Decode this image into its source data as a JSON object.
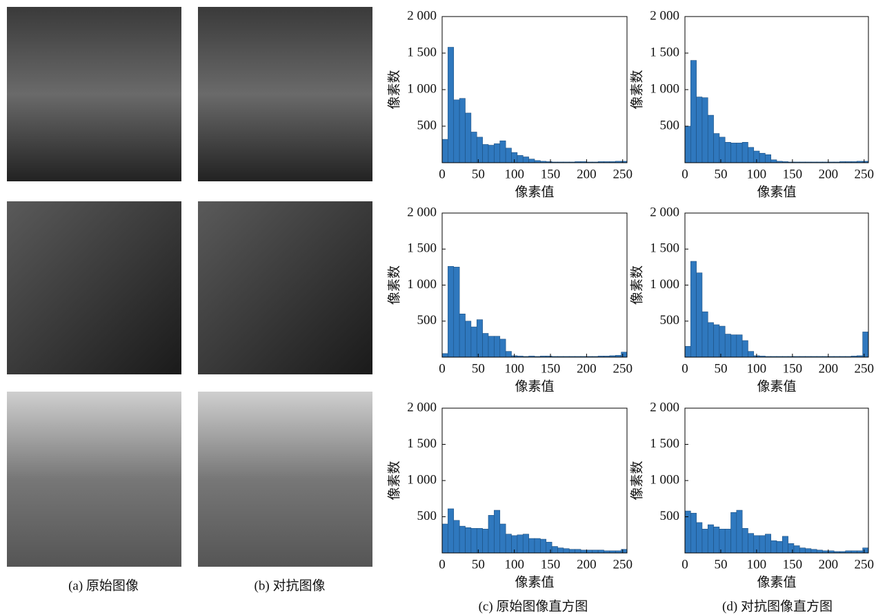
{
  "panel_captions": {
    "a": "(a) 原始图像",
    "b": "(b) 对抗图像",
    "c": "(c) 原始图像直方图",
    "d": "(d) 对抗图像直方图"
  },
  "chart_data": [
    {
      "type": "histogram",
      "xlabel": "像素值",
      "ylabel": "像素数",
      "color": "#2f78be",
      "bins": [
        0,
        8,
        16,
        24,
        32,
        40,
        48,
        56,
        64,
        72,
        80,
        88,
        96,
        104,
        112,
        120,
        128,
        136,
        144,
        152,
        160,
        168,
        176,
        184,
        192,
        200,
        208,
        216,
        224,
        232,
        240,
        248,
        256
      ],
      "counts": [
        320,
        1580,
        860,
        880,
        680,
        420,
        350,
        250,
        240,
        260,
        300,
        200,
        140,
        100,
        80,
        50,
        30,
        20,
        15,
        10,
        10,
        10,
        10,
        15,
        15,
        10,
        10,
        15,
        15,
        15,
        20,
        20
      ],
      "xlim": [
        0,
        256
      ],
      "xticks": [
        0,
        50,
        100,
        150,
        200,
        250
      ],
      "ylim": [
        0,
        2000
      ],
      "yticks": [
        500,
        {
          "value": 1000,
          "label": "1 000"
        },
        {
          "value": 1500,
          "label": "1 500"
        },
        {
          "value": 2000,
          "label": "2 000"
        }
      ]
    },
    {
      "type": "histogram",
      "xlabel": "像素值",
      "ylabel": "像素数",
      "color": "#2f78be",
      "bins": [
        0,
        8,
        16,
        24,
        32,
        40,
        48,
        56,
        64,
        72,
        80,
        88,
        96,
        104,
        112,
        120,
        128,
        136,
        144,
        152,
        160,
        168,
        176,
        184,
        192,
        200,
        208,
        216,
        224,
        232,
        240,
        248,
        256
      ],
      "counts": [
        500,
        1400,
        900,
        890,
        650,
        400,
        350,
        280,
        270,
        270,
        280,
        210,
        160,
        130,
        110,
        40,
        20,
        15,
        10,
        10,
        10,
        10,
        10,
        10,
        10,
        10,
        10,
        15,
        15,
        15,
        20,
        20
      ],
      "xlim": [
        0,
        256
      ],
      "xticks": [
        0,
        50,
        100,
        150,
        200,
        250
      ],
      "ylim": [
        0,
        2000
      ],
      "yticks": [
        500,
        {
          "value": 1000,
          "label": "1 000"
        },
        {
          "value": 1500,
          "label": "1 500"
        },
        {
          "value": 2000,
          "label": "2 000"
        }
      ]
    },
    {
      "type": "histogram",
      "xlabel": "像素值",
      "ylabel": "像素数",
      "color": "#2f78be",
      "bins": [
        0,
        8,
        16,
        24,
        32,
        40,
        48,
        56,
        64,
        72,
        80,
        88,
        96,
        104,
        112,
        120,
        128,
        136,
        144,
        152,
        160,
        168,
        176,
        184,
        192,
        200,
        208,
        216,
        224,
        232,
        240,
        248,
        256
      ],
      "counts": [
        50,
        1260,
        1250,
        600,
        500,
        420,
        520,
        330,
        290,
        290,
        250,
        80,
        20,
        15,
        10,
        15,
        10,
        15,
        15,
        10,
        10,
        10,
        10,
        10,
        10,
        10,
        10,
        15,
        15,
        20,
        25,
        70
      ],
      "xlim": [
        0,
        256
      ],
      "xticks": [
        0,
        50,
        100,
        150,
        200,
        250
      ],
      "ylim": [
        0,
        2000
      ],
      "yticks": [
        500,
        {
          "value": 1000,
          "label": "1 000"
        },
        {
          "value": 1500,
          "label": "1 500"
        },
        {
          "value": 2000,
          "label": "2 000"
        }
      ]
    },
    {
      "type": "histogram",
      "xlabel": "像素值",
      "ylabel": "像素数",
      "color": "#2f78be",
      "bins": [
        0,
        8,
        16,
        24,
        32,
        40,
        48,
        56,
        64,
        72,
        80,
        88,
        96,
        104,
        112,
        120,
        128,
        136,
        144,
        152,
        160,
        168,
        176,
        184,
        192,
        200,
        208,
        216,
        224,
        232,
        240,
        248,
        256
      ],
      "counts": [
        150,
        1330,
        1170,
        630,
        480,
        450,
        430,
        320,
        310,
        310,
        230,
        80,
        20,
        15,
        10,
        10,
        10,
        10,
        10,
        10,
        10,
        10,
        10,
        10,
        10,
        10,
        10,
        10,
        10,
        15,
        20,
        350
      ],
      "xlim": [
        0,
        256
      ],
      "xticks": [
        0,
        50,
        100,
        150,
        200,
        250
      ],
      "ylim": [
        0,
        2000
      ],
      "yticks": [
        500,
        {
          "value": 1000,
          "label": "1 000"
        },
        {
          "value": 1500,
          "label": "1 500"
        },
        {
          "value": 2000,
          "label": "2 000"
        }
      ]
    },
    {
      "type": "histogram",
      "xlabel": "像素值",
      "ylabel": "像素数",
      "color": "#2f78be",
      "bins": [
        0,
        8,
        16,
        24,
        32,
        40,
        48,
        56,
        64,
        72,
        80,
        88,
        96,
        104,
        112,
        120,
        128,
        136,
        144,
        152,
        160,
        168,
        176,
        184,
        192,
        200,
        208,
        216,
        224,
        232,
        240,
        248,
        256
      ],
      "counts": [
        400,
        610,
        450,
        370,
        350,
        340,
        340,
        330,
        520,
        590,
        400,
        260,
        240,
        250,
        260,
        200,
        200,
        190,
        150,
        90,
        70,
        60,
        50,
        50,
        40,
        40,
        40,
        40,
        30,
        30,
        30,
        50
      ],
      "xlim": [
        0,
        256
      ],
      "xticks": [
        0,
        50,
        100,
        150,
        200,
        250
      ],
      "ylim": [
        0,
        2000
      ],
      "yticks": [
        500,
        {
          "value": 1000,
          "label": "1 000"
        },
        {
          "value": 1500,
          "label": "1 500"
        },
        {
          "value": 2000,
          "label": "2 000"
        }
      ]
    },
    {
      "type": "histogram",
      "xlabel": "像素值",
      "ylabel": "像素数",
      "color": "#2f78be",
      "bins": [
        0,
        8,
        16,
        24,
        32,
        40,
        48,
        56,
        64,
        72,
        80,
        88,
        96,
        104,
        112,
        120,
        128,
        136,
        144,
        152,
        160,
        168,
        176,
        184,
        192,
        200,
        208,
        216,
        224,
        232,
        240,
        248,
        256
      ],
      "counts": [
        580,
        550,
        420,
        330,
        390,
        360,
        330,
        330,
        560,
        590,
        340,
        270,
        240,
        240,
        260,
        170,
        160,
        230,
        130,
        100,
        70,
        60,
        50,
        40,
        30,
        30,
        20,
        20,
        30,
        30,
        30,
        70
      ],
      "xlim": [
        0,
        256
      ],
      "xticks": [
        0,
        50,
        100,
        150,
        200,
        250
      ],
      "ylim": [
        0,
        2000
      ],
      "yticks": [
        500,
        {
          "value": 1000,
          "label": "1 000"
        },
        {
          "value": 1500,
          "label": "1 500"
        },
        {
          "value": 2000,
          "label": "2 000"
        }
      ]
    }
  ]
}
